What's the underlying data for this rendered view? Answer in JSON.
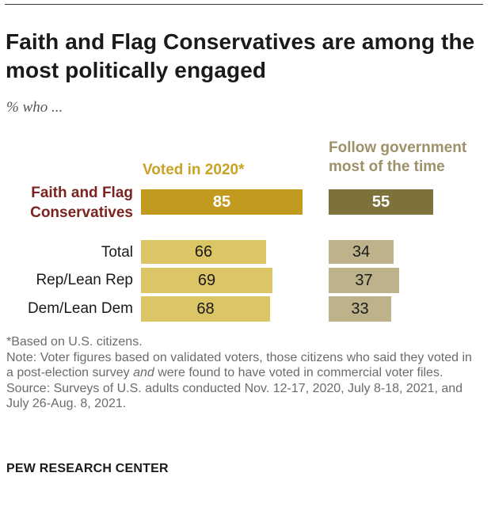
{
  "title": "Faith and Flag Conservatives are among the most politically engaged",
  "subtitle": "% who ...",
  "chart_data": {
    "type": "bar",
    "orientation": "horizontal",
    "title": "Faith and Flag Conservatives are among the most politically engaged",
    "subtitle": "% who ...",
    "categories": [
      "Faith and Flag Conservatives",
      "Total",
      "Rep/Lean Rep",
      "Dem/Lean Dem"
    ],
    "highlight_category": "Faith and Flag Conservatives",
    "series": [
      {
        "name": "Voted in 2020*",
        "values": [
          85,
          66,
          69,
          68
        ],
        "highlight_color": "#c29a1f",
        "color": "#dcc564",
        "header_color": "#c9a227"
      },
      {
        "name": "Follow government most of the time",
        "values": [
          55,
          34,
          37,
          33
        ],
        "highlight_color": "#7d7239",
        "color": "#bdb28a",
        "header_color": "#9e9068"
      }
    ],
    "xlim": [
      0,
      100
    ]
  },
  "footnotes": {
    "based_on": "*Based on U.S. citizens.",
    "note_part1": "Note: Voter figures based on validated voters, those citizens who said they voted in a post-election survey ",
    "note_emph": "and",
    "note_part2": " were found to have voted in commercial voter files.",
    "source": "Source: Surveys of U.S. adults conducted Nov. 12-17, 2020, July 8-18, 2021, and July 26-Aug. 8, 2021."
  },
  "credit": "PEW RESEARCH CENTER"
}
